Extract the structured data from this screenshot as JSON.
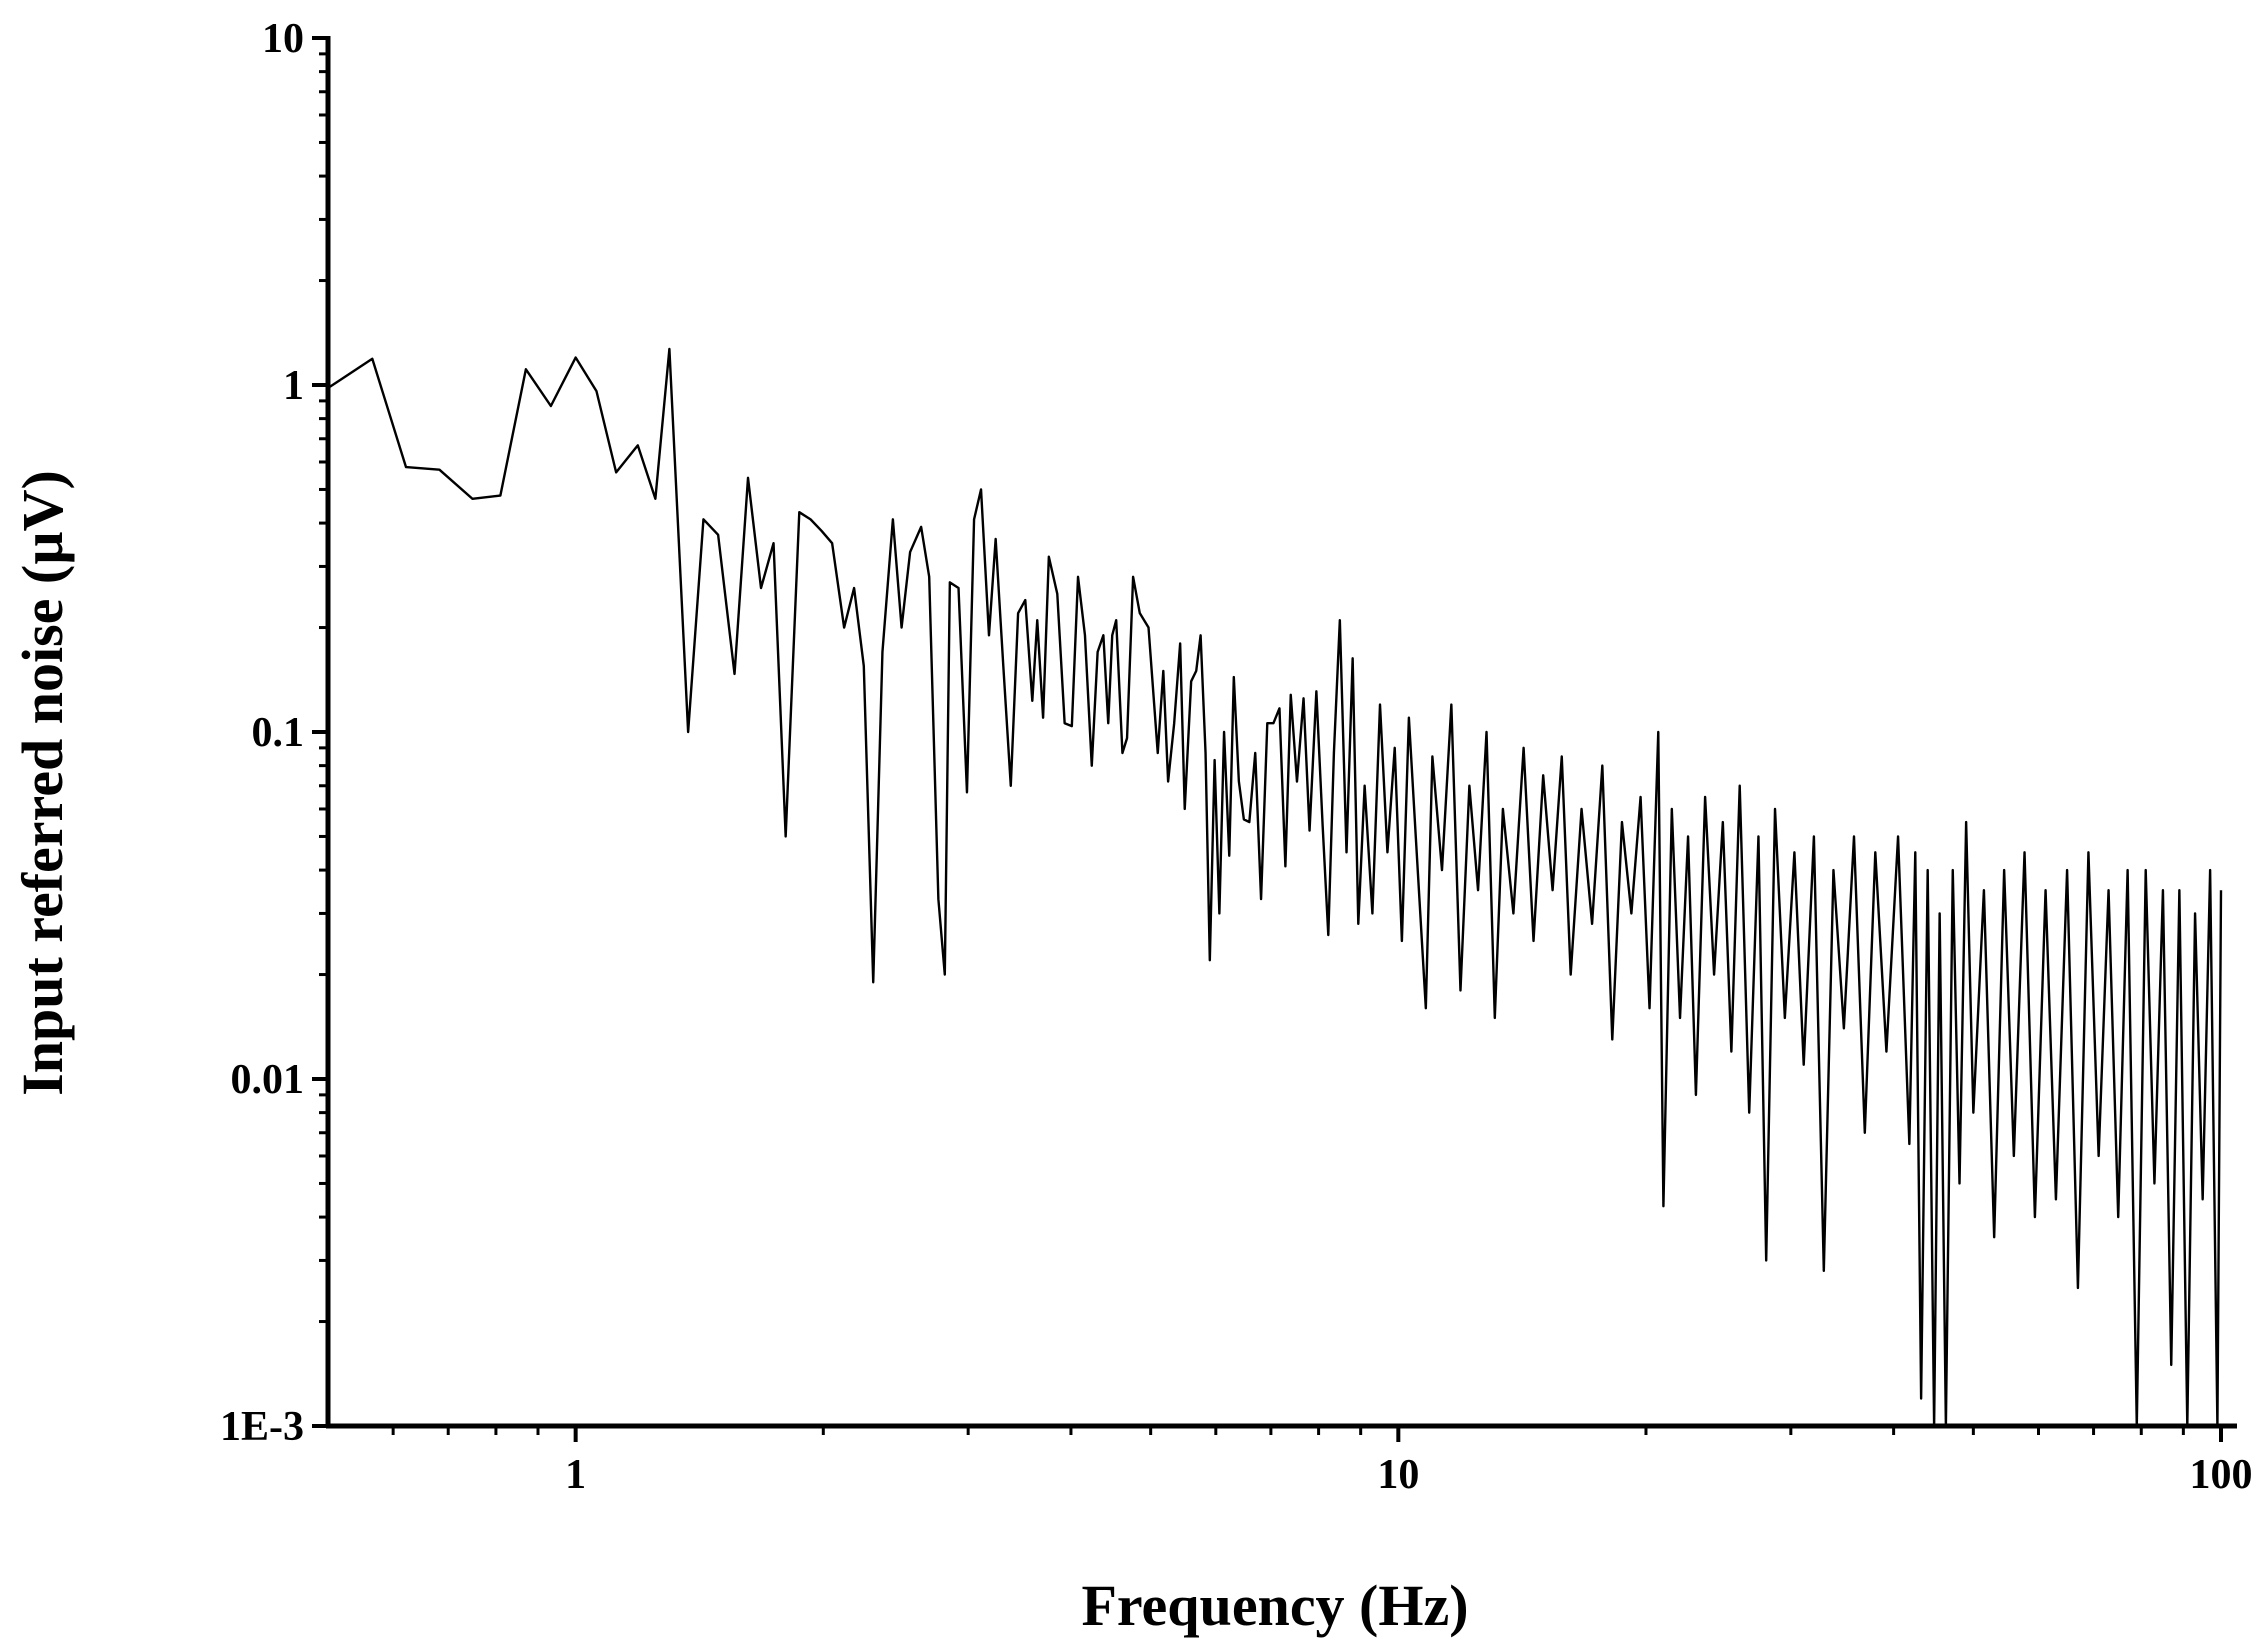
{
  "chart_data": {
    "type": "line",
    "x_label": "Frequency (Hz)",
    "y_label": "Input referred noise (µV)",
    "xscale": "log",
    "yscale": "log",
    "xlim": [
      0.5,
      100
    ],
    "ylim": [
      0.001,
      10
    ],
    "xticks": [
      1,
      10,
      100
    ],
    "yticks": [
      10,
      1,
      0.1,
      0.01,
      {
        "value": 0.001,
        "label": "1E-3"
      }
    ],
    "xminorticks": [
      0.6,
      0.7,
      0.8,
      0.9,
      2,
      3,
      4,
      5,
      6,
      7,
      8,
      9,
      20,
      30,
      40,
      50,
      60,
      70,
      80,
      90
    ],
    "yminorticks": [
      0.002,
      0.003,
      0.004,
      0.005,
      0.006,
      0.007,
      0.008,
      0.009,
      0.02,
      0.03,
      0.04,
      0.05,
      0.06,
      0.07,
      0.08,
      0.09,
      0.2,
      0.3,
      0.4,
      0.5,
      0.6,
      0.7,
      0.8,
      0.9,
      2,
      3,
      4,
      5,
      6,
      7,
      8,
      9
    ],
    "color": "#000000",
    "x": [
      0.5,
      0.566,
      0.622,
      0.683,
      0.749,
      0.81,
      0.87,
      0.933,
      1.0,
      1.06,
      1.12,
      1.19,
      1.25,
      1.3,
      1.37,
      1.43,
      1.49,
      1.56,
      1.62,
      1.68,
      1.74,
      1.8,
      1.87,
      1.93,
      1.99,
      2.05,
      2.12,
      2.18,
      2.24,
      2.3,
      2.36,
      2.43,
      2.49,
      2.55,
      2.63,
      2.69,
      2.76,
      2.81,
      2.85,
      2.92,
      2.99,
      3.05,
      3.11,
      3.18,
      3.24,
      3.31,
      3.38,
      3.45,
      3.52,
      3.59,
      3.64,
      3.7,
      3.76,
      3.85,
      3.93,
      4.01,
      4.08,
      4.16,
      4.24,
      4.31,
      4.38,
      4.44,
      4.49,
      4.54,
      4.62,
      4.68,
      4.76,
      4.85,
      4.97,
      5.1,
      5.18,
      5.25,
      5.34,
      5.43,
      5.5,
      5.6,
      5.68,
      5.75,
      5.83,
      5.9,
      5.98,
      6.06,
      6.14,
      6.23,
      6.31,
      6.4,
      6.49,
      6.59,
      6.7,
      6.81,
      6.93,
      7.05,
      7.17,
      7.29,
      7.4,
      7.53,
      7.67,
      7.8,
      7.95,
      8.09,
      8.22,
      8.35,
      8.49,
      8.65,
      8.8,
      8.94,
      9.1,
      9.3,
      9.5,
      9.7,
      9.9,
      10.1,
      10.3,
      10.5,
      10.8,
      11.0,
      11.3,
      11.6,
      11.9,
      12.2,
      12.5,
      12.8,
      13.1,
      13.4,
      13.8,
      14.2,
      14.6,
      15.0,
      15.4,
      15.8,
      16.2,
      16.7,
      17.2,
      17.7,
      18.2,
      18.7,
      19.2,
      19.7,
      20.2,
      20.7,
      21.0,
      21.5,
      22.0,
      22.5,
      23.0,
      23.6,
      24.2,
      24.8,
      25.4,
      26.0,
      26.7,
      27.4,
      28.0,
      28.7,
      29.5,
      30.3,
      31.1,
      32.0,
      32.9,
      33.8,
      34.8,
      35.8,
      36.9,
      38.0,
      39.2,
      40.5,
      41.8,
      42.5,
      43.2,
      44.0,
      44.8,
      45.5,
      46.3,
      47.2,
      48.1,
      49.0,
      50.0,
      51.5,
      53.0,
      54.5,
      56.0,
      57.7,
      59.4,
      61.2,
      63.0,
      65.0,
      67.0,
      69.0,
      71.0,
      73.0,
      75.0,
      77.0,
      79.0,
      81.0,
      83.0,
      85.0,
      87.0,
      89.0,
      91.0,
      93.0,
      95.0,
      97.0,
      99.0,
      100.0
    ],
    "values": [
      0.98,
      1.19,
      0.58,
      0.57,
      0.47,
      0.48,
      1.11,
      0.87,
      1.2,
      0.96,
      0.56,
      0.67,
      0.47,
      1.27,
      0.1,
      0.41,
      0.37,
      0.147,
      0.54,
      0.26,
      0.35,
      0.05,
      0.43,
      0.41,
      0.38,
      0.35,
      0.2,
      0.26,
      0.155,
      0.019,
      0.17,
      0.41,
      0.2,
      0.33,
      0.39,
      0.28,
      0.033,
      0.02,
      0.27,
      0.26,
      0.067,
      0.41,
      0.5,
      0.19,
      0.36,
      0.155,
      0.07,
      0.22,
      0.24,
      0.123,
      0.21,
      0.11,
      0.32,
      0.25,
      0.106,
      0.104,
      0.28,
      0.19,
      0.08,
      0.17,
      0.19,
      0.106,
      0.19,
      0.21,
      0.087,
      0.096,
      0.28,
      0.22,
      0.2,
      0.087,
      0.15,
      0.072,
      0.106,
      0.18,
      0.06,
      0.14,
      0.15,
      0.19,
      0.087,
      0.022,
      0.083,
      0.03,
      0.1,
      0.044,
      0.144,
      0.072,
      0.056,
      0.055,
      0.087,
      0.033,
      0.106,
      0.106,
      0.117,
      0.041,
      0.128,
      0.072,
      0.125,
      0.052,
      0.131,
      0.054,
      0.026,
      0.087,
      0.21,
      0.045,
      0.163,
      0.028,
      0.07,
      0.03,
      0.12,
      0.045,
      0.09,
      0.025,
      0.11,
      0.05,
      0.016,
      0.085,
      0.04,
      0.12,
      0.018,
      0.07,
      0.035,
      0.1,
      0.015,
      0.06,
      0.03,
      0.09,
      0.025,
      0.075,
      0.035,
      0.085,
      0.02,
      0.06,
      0.028,
      0.08,
      0.013,
      0.055,
      0.03,
      0.065,
      0.016,
      0.1,
      0.0043,
      0.06,
      0.015,
      0.05,
      0.009,
      0.065,
      0.02,
      0.055,
      0.012,
      0.07,
      0.008,
      0.05,
      0.003,
      0.06,
      0.015,
      0.045,
      0.011,
      0.05,
      0.0028,
      0.04,
      0.014,
      0.05,
      0.007,
      0.045,
      0.012,
      0.05,
      0.0065,
      0.045,
      0.0012,
      0.04,
      0.001,
      0.03,
      0.001,
      0.04,
      0.005,
      0.055,
      0.008,
      0.035,
      0.0035,
      0.04,
      0.006,
      0.045,
      0.004,
      0.035,
      0.0045,
      0.04,
      0.0025,
      0.045,
      0.006,
      0.035,
      0.004,
      0.04,
      0.001,
      0.04,
      0.005,
      0.035,
      0.0015,
      0.035,
      0.001,
      0.03,
      0.0045,
      0.04,
      0.001,
      0.035
    ]
  }
}
